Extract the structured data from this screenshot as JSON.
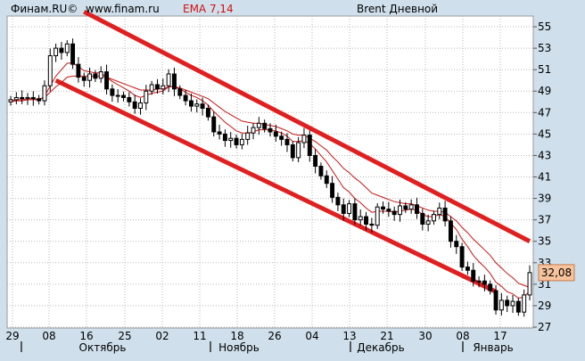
{
  "header": {
    "source": "Финам.RU©",
    "site": "www.finam.ru",
    "indicator": "EMA 7,14",
    "instrument": "Brent Дневной"
  },
  "colors": {
    "background": "#cfe0ec",
    "plot_background": "#ffffff",
    "indicator_label": "#d01010",
    "ema": "#c81414",
    "channel": "#e02020",
    "last_price_box": "#f6c39c"
  },
  "chart_data": {
    "type": "candlestick",
    "title": "Brent Дневной",
    "indicators": "EMA 7,14",
    "ylim": [
      27,
      55.5
    ],
    "y_ticks": [
      27,
      29,
      31,
      33,
      35,
      37,
      39,
      41,
      43,
      45,
      47,
      49,
      51,
      53,
      55
    ],
    "x_tick_labels": [
      "29",
      "08",
      "16",
      "25",
      "02",
      "11",
      "18",
      "26",
      "04",
      "13",
      "21",
      "30",
      "08",
      "17"
    ],
    "month_labels": [
      "Октябрь",
      "Ноябрь",
      "Декабрь",
      "Январь"
    ],
    "last_price": "32,08",
    "close": [
      48.2,
      48.4,
      48.3,
      48.4,
      48.3,
      48.1,
      49.5,
      52.3,
      53.0,
      52.6,
      53.4,
      51.5,
      50.3,
      50.0,
      50.6,
      50.2,
      50.8,
      49.2,
      48.6,
      48.6,
      48.4,
      48.0,
      47.4,
      47.9,
      49.0,
      49.6,
      49.2,
      49.5,
      50.6,
      49.2,
      48.6,
      48.1,
      47.6,
      47.8,
      47.4,
      46.6,
      45.2,
      45.0,
      44.4,
      44.6,
      44.0,
      44.5,
      45.1,
      45.6,
      46.0,
      45.5,
      45.2,
      44.8,
      44.5,
      44.0,
      42.8,
      44.2,
      44.9,
      43.0,
      42.0,
      41.1,
      40.4,
      39.1,
      38.4,
      37.6,
      38.5,
      37.0,
      37.3,
      36.6,
      36.5,
      38.2,
      38.0,
      37.8,
      37.5,
      38.3,
      38.0,
      38.4,
      37.6,
      36.6,
      36.9,
      37.5,
      38.1,
      36.9,
      35.0,
      34.5,
      32.6,
      32.3,
      31.3,
      31.3,
      31.0,
      30.4,
      28.6,
      29.5,
      29.0,
      29.4,
      28.4,
      30.0,
      32.08
    ],
    "ema7": [
      48.1,
      48.2,
      48.2,
      48.3,
      48.3,
      48.2,
      48.5,
      49.5,
      50.4,
      51.0,
      51.6,
      51.6,
      51.3,
      50.9,
      50.8,
      50.7,
      50.7,
      50.3,
      49.9,
      49.6,
      49.3,
      49.0,
      48.6,
      48.4,
      48.6,
      48.8,
      48.9,
      49.0,
      49.4,
      49.4,
      49.2,
      48.9,
      48.6,
      48.4,
      48.1,
      47.7,
      47.1,
      46.6,
      46.1,
      45.7,
      45.3,
      45.1,
      45.1,
      45.2,
      45.4,
      45.4,
      45.4,
      45.3,
      45.1,
      44.8,
      44.3,
      44.3,
      44.4,
      44.1,
      43.6,
      43.0,
      42.4,
      41.6,
      40.8,
      40.0,
      39.6,
      39.0,
      38.6,
      38.1,
      37.7,
      37.8,
      37.8,
      37.8,
      37.7,
      37.8,
      37.9,
      38.0,
      37.9,
      37.5,
      37.3,
      37.3,
      37.5,
      37.3,
      36.7,
      36.1,
      35.2,
      34.5,
      33.7,
      33.1,
      32.6,
      32.0,
      31.2,
      30.8,
      30.3,
      30.1,
      29.7,
      29.8,
      30.4
    ],
    "ema14": [
      48.0,
      48.1,
      48.1,
      48.2,
      48.2,
      48.2,
      48.4,
      48.9,
      49.4,
      49.8,
      50.3,
      50.4,
      50.4,
      50.4,
      50.4,
      50.4,
      50.4,
      50.3,
      50.1,
      49.9,
      49.7,
      49.5,
      49.3,
      49.1,
      49.1,
      49.1,
      49.2,
      49.2,
      49.4,
      49.4,
      49.3,
      49.1,
      48.9,
      48.7,
      48.5,
      48.3,
      47.9,
      47.5,
      47.1,
      46.8,
      46.5,
      46.2,
      46.1,
      46.0,
      46.0,
      45.9,
      45.8,
      45.7,
      45.5,
      45.3,
      45.0,
      44.9,
      44.9,
      44.6,
      44.3,
      43.9,
      43.5,
      42.9,
      42.4,
      41.8,
      41.4,
      40.9,
      40.5,
      40.0,
      39.5,
      39.3,
      39.1,
      38.9,
      38.7,
      38.6,
      38.5,
      38.5,
      38.3,
      38.1,
      37.9,
      37.8,
      37.8,
      37.7,
      37.3,
      36.9,
      36.3,
      35.8,
      35.2,
      34.7,
      34.2,
      33.7,
      33.0,
      32.5,
      32.0,
      31.6,
      31.1,
      30.9,
      30.7
    ],
    "channel_upper": {
      "start": {
        "day": 13,
        "price": 56.4
      },
      "end": {
        "day": 92,
        "price": 35.0
      }
    },
    "channel_lower": {
      "start": {
        "day": 8,
        "price": 50.0
      },
      "end": {
        "day": 86,
        "price": 30.3
      }
    }
  }
}
